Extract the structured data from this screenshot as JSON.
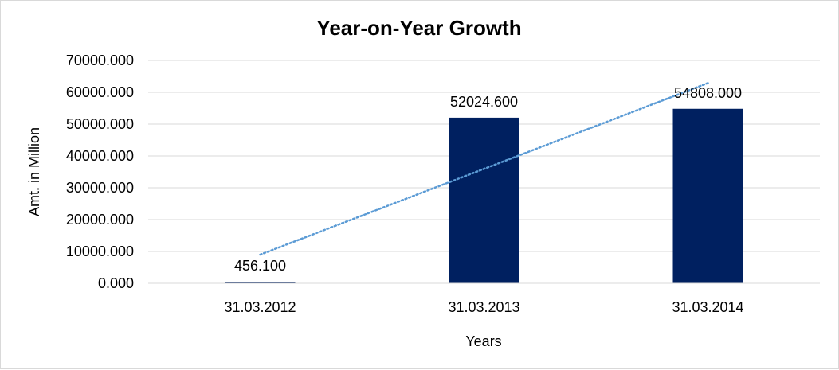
{
  "chart_data": {
    "type": "bar",
    "title": "Year-on-Year Growth",
    "xlabel": "Years",
    "ylabel": "Amt. in Million",
    "categories": [
      "31.03.2012",
      "31.03.2013",
      "31.03.2014"
    ],
    "values": [
      456.1,
      52024.6,
      54808.0
    ],
    "data_labels": [
      "456.100",
      "52024.600",
      "54808.000"
    ],
    "ylim": [
      0,
      70000
    ],
    "yticks": [
      0,
      10000,
      20000,
      30000,
      40000,
      50000,
      60000,
      70000
    ],
    "ytick_labels": [
      "0.000",
      "10000.000",
      "20000.000",
      "30000.000",
      "40000.000",
      "50000.000",
      "60000.000",
      "70000.000"
    ],
    "grid": true,
    "bar_color": "#002060",
    "trendline": {
      "type": "linear",
      "style": "dotted",
      "color": "#5b9bd5",
      "start_value": 9000,
      "end_value": 62900
    }
  }
}
